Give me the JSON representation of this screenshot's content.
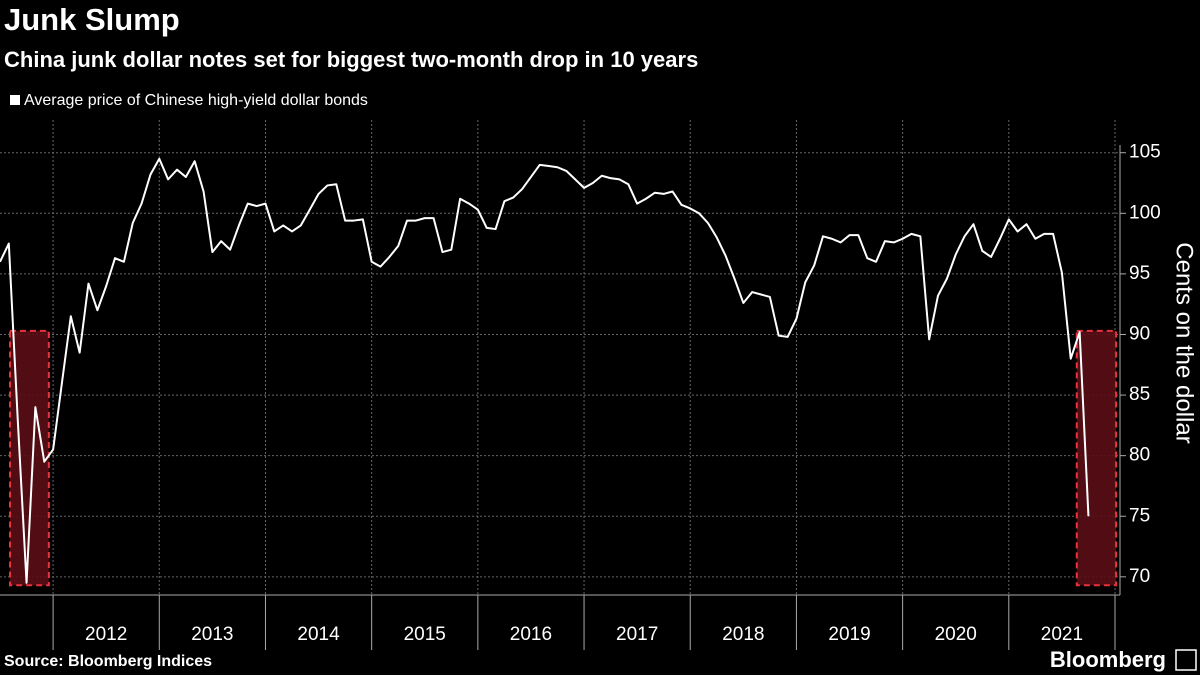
{
  "chart_data": {
    "type": "line",
    "title": "Junk Slump",
    "subtitle": "China junk dollar notes set for biggest two-month drop in 10 years",
    "y_axis_label": "Cents on the dollar",
    "source": "Source: Bloomberg Indices",
    "branding": "Bloomberg",
    "grid": true,
    "legend_position": "top-left",
    "xlim": [
      2011.5,
      2022
    ],
    "ylim": [
      68.5,
      107.7
    ],
    "yticks": [
      70,
      75,
      80,
      85,
      90,
      95,
      100,
      105
    ],
    "xgrid": [
      2012,
      2013,
      2014,
      2015,
      2016,
      2017,
      2018,
      2019,
      2020,
      2021,
      2022
    ],
    "xticks": [
      {
        "value": 2012.5,
        "label": "2012"
      },
      {
        "value": 2013.5,
        "label": "2013"
      },
      {
        "value": 2014.5,
        "label": "2014"
      },
      {
        "value": 2015.5,
        "label": "2015"
      },
      {
        "value": 2016.5,
        "label": "2016"
      },
      {
        "value": 2017.5,
        "label": "2017"
      },
      {
        "value": 2018.5,
        "label": "2018"
      },
      {
        "value": 2019.5,
        "label": "2019"
      },
      {
        "value": 2020.5,
        "label": "2020"
      },
      {
        "value": 2021.5,
        "label": "2021"
      }
    ],
    "highlights": [
      {
        "xlim": [
          2011.594,
          2011.96
        ],
        "ylim": [
          69.3,
          90.3
        ],
        "color": "#5a0d16"
      },
      {
        "xlim": [
          2021.64,
          2022.01
        ],
        "ylim": [
          69.3,
          90.3
        ],
        "color": "#5a0d16"
      }
    ],
    "x": [
      2011.5,
      2011.583,
      2011.667,
      2011.75,
      2011.833,
      2011.917,
      2012,
      2012.083,
      2012.167,
      2012.25,
      2012.333,
      2012.417,
      2012.5,
      2012.583,
      2012.667,
      2012.75,
      2012.833,
      2012.917,
      2013,
      2013.083,
      2013.167,
      2013.25,
      2013.333,
      2013.417,
      2013.5,
      2013.583,
      2013.667,
      2013.75,
      2013.833,
      2013.917,
      2014,
      2014.083,
      2014.167,
      2014.25,
      2014.333,
      2014.417,
      2014.5,
      2014.583,
      2014.667,
      2014.75,
      2014.833,
      2014.917,
      2015,
      2015.083,
      2015.167,
      2015.25,
      2015.333,
      2015.417,
      2015.5,
      2015.583,
      2015.667,
      2015.75,
      2015.833,
      2015.917,
      2016,
      2016.083,
      2016.167,
      2016.25,
      2016.333,
      2016.417,
      2016.5,
      2016.583,
      2016.667,
      2016.75,
      2016.833,
      2016.917,
      2017,
      2017.083,
      2017.167,
      2017.25,
      2017.333,
      2017.417,
      2017.5,
      2017.583,
      2017.667,
      2017.75,
      2017.833,
      2017.917,
      2018,
      2018.083,
      2018.167,
      2018.25,
      2018.333,
      2018.417,
      2018.5,
      2018.583,
      2018.667,
      2018.75,
      2018.833,
      2018.917,
      2019,
      2019.083,
      2019.167,
      2019.25,
      2019.333,
      2019.417,
      2019.5,
      2019.583,
      2019.667,
      2019.75,
      2019.833,
      2019.917,
      2020,
      2020.083,
      2020.167,
      2020.25,
      2020.333,
      2020.417,
      2020.5,
      2020.583,
      2020.667,
      2020.75,
      2020.833,
      2020.917,
      2021,
      2021.083,
      2021.167,
      2021.25,
      2021.333,
      2021.417,
      2021.5,
      2021.583,
      2021.667,
      2021.75
    ],
    "series": [
      {
        "name": "Average price of Chinese high-yield dollar bonds",
        "color": "#ffffff",
        "values": [
          96.0,
          97.5,
          83,
          69.5,
          84,
          79.5,
          80.5,
          86,
          91.5,
          88.5,
          94.2,
          92,
          94,
          96.3,
          96,
          99.2,
          100.8,
          103.2,
          104.5,
          102.8,
          103.6,
          103,
          104.3,
          101.8,
          96.8,
          97.7,
          97,
          99,
          100.8,
          100.6,
          100.8,
          98.5,
          99,
          98.5,
          99,
          100.3,
          101.6,
          102.3,
          102.4,
          99.4,
          99.4,
          99.5,
          96,
          95.6,
          96.4,
          97.3,
          99.4,
          99.4,
          99.6,
          99.6,
          96.8,
          97,
          101.2,
          100.8,
          100.3,
          98.8,
          98.7,
          101,
          101.3,
          102,
          103,
          104,
          103.9,
          103.8,
          103.5,
          102.8,
          102.1,
          102.5,
          103.1,
          102.9,
          102.8,
          102.4,
          100.8,
          101.2,
          101.7,
          101.6,
          101.8,
          100.7,
          100.4,
          100,
          99.2,
          98,
          96.5,
          94.6,
          92.6,
          93.5,
          93.3,
          93.1,
          89.9,
          89.8,
          91.3,
          94.3,
          95.7,
          98.1,
          97.9,
          97.6,
          98.2,
          98.2,
          96.3,
          96,
          97.7,
          97.6,
          97.9,
          98.3,
          98.1,
          89.6,
          93.2,
          94.6,
          96.6,
          98.1,
          99.1,
          96.9,
          96.4,
          97.9,
          99.5,
          98.5,
          99.1,
          97.9,
          98.3,
          98.3,
          95.1,
          88,
          90.2,
          75
        ]
      }
    ]
  }
}
